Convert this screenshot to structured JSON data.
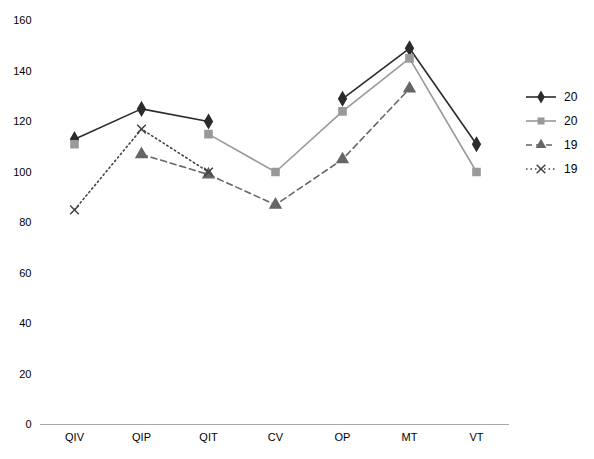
{
  "chart_data": {
    "type": "line",
    "categories": [
      "QIV",
      "QIP",
      "QIT",
      "CV",
      "OP",
      "MT",
      "VT"
    ],
    "series": [
      {
        "name": "20",
        "values": [
          113,
          125,
          120,
          null,
          129,
          149,
          111
        ],
        "color": "#2b2b2b",
        "marker": "diamond",
        "line_style": "solid"
      },
      {
        "name": "20",
        "values": [
          111,
          null,
          115,
          100,
          124,
          145,
          100
        ],
        "color": "#999999",
        "marker": "square",
        "line_style": "solid"
      },
      {
        "name": "19",
        "values": [
          null,
          107,
          99,
          87,
          105,
          133,
          null
        ],
        "color": "#666666",
        "marker": "triangle",
        "line_style": "dashed"
      },
      {
        "name": "19",
        "values": [
          85,
          117,
          100,
          null,
          null,
          null,
          null
        ],
        "color": "#444444",
        "marker": "x",
        "line_style": "dotted"
      }
    ],
    "ylim": [
      0,
      160
    ],
    "yticks": [
      0,
      20,
      40,
      60,
      80,
      100,
      120,
      140,
      160
    ],
    "grid": false,
    "legend": "right"
  }
}
